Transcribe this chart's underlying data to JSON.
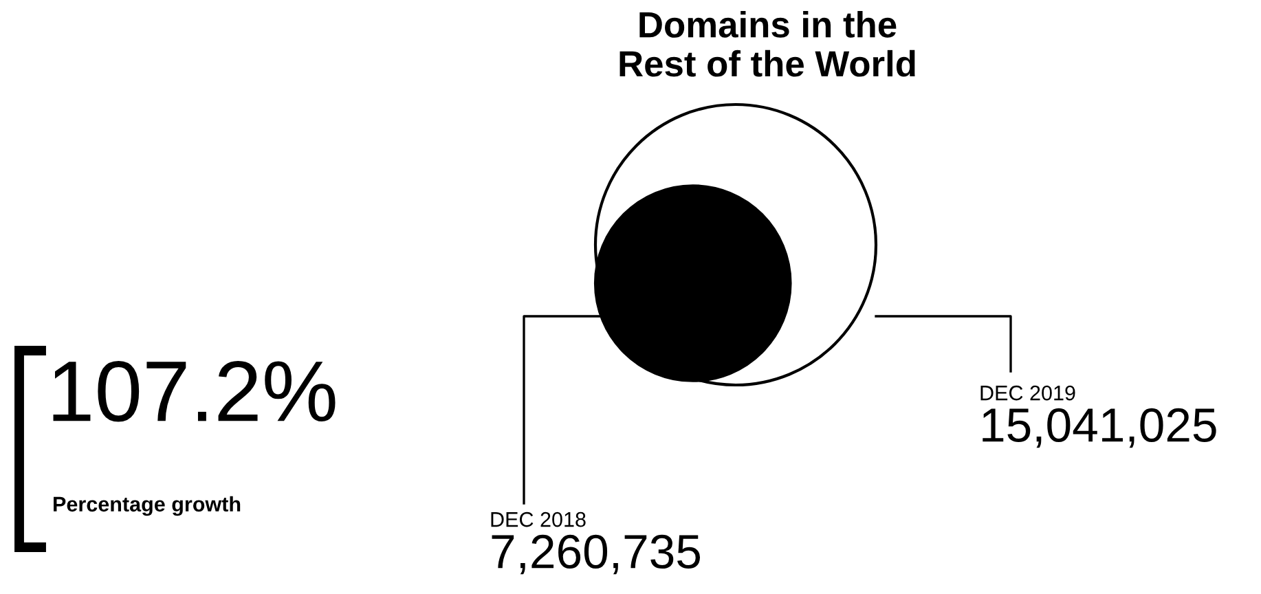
{
  "chart_data": {
    "type": "other",
    "title": "Domains in the\nRest of the World",
    "categories": [
      "DEC 2018",
      "DEC 2019"
    ],
    "values": [
      7260735,
      15041025
    ],
    "value_labels": [
      "7,260,735",
      "15,041,025"
    ],
    "colors": [
      "#000000",
      "#ffffff"
    ],
    "annotations": [
      "107.2%",
      "Percentage growth"
    ]
  }
}
